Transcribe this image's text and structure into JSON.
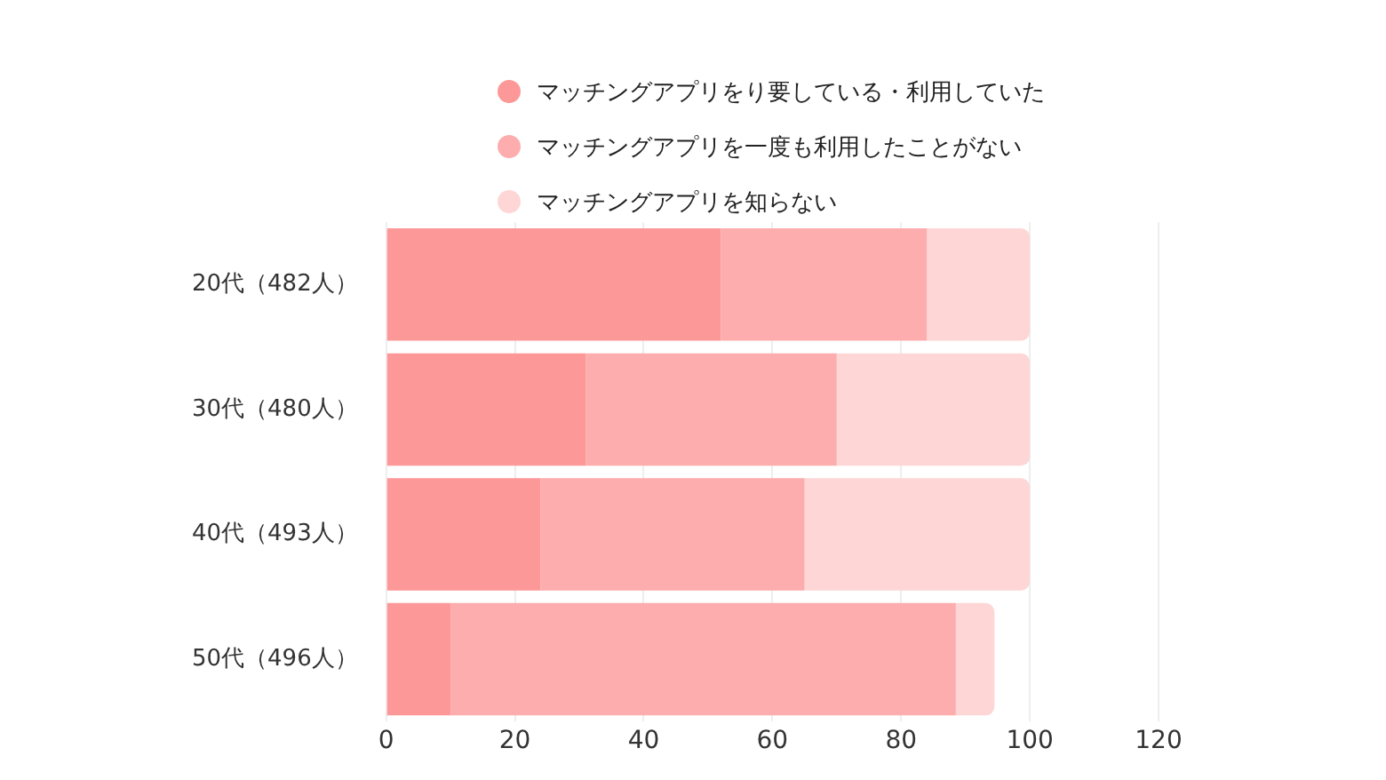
{
  "chart_data": {
    "type": "bar",
    "orientation": "horizontal",
    "stacked": true,
    "categories": [
      "20代（482人）",
      "30代（480人）",
      "40代（493人）",
      "50代（496人）"
    ],
    "series": [
      {
        "name": "マッチングアプリをり要している・利用していた",
        "color": "#fd9898",
        "values": [
          52,
          31,
          24,
          10
        ]
      },
      {
        "name": "マッチングアプリを一度も利用したことがない",
        "color": "#fdadad",
        "values": [
          32,
          39,
          41,
          78.5
        ]
      },
      {
        "name": "マッチングアプリを知らない",
        "color": "#fed6d6",
        "values": [
          16,
          30,
          35,
          6
        ]
      }
    ],
    "xlim": [
      0,
      120
    ],
    "xticks": [
      0,
      20,
      40,
      60,
      80,
      100,
      120
    ],
    "grid": "x",
    "legend": "top"
  }
}
